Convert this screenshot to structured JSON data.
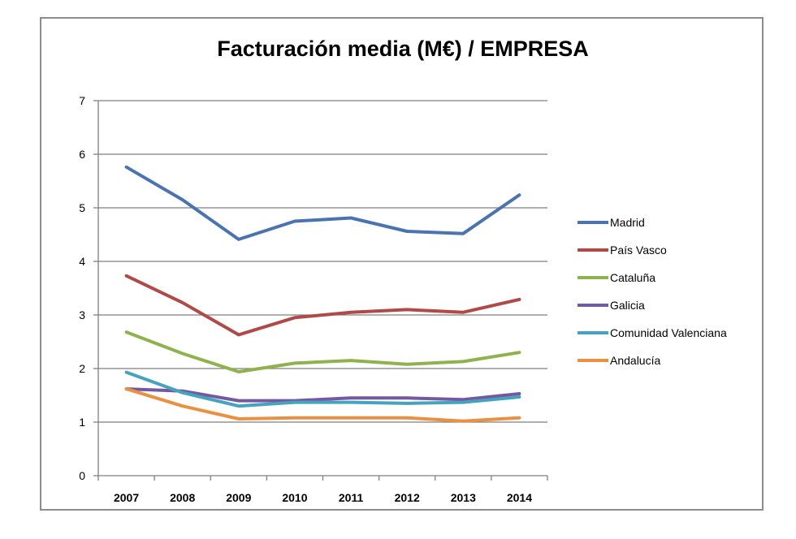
{
  "chart_data": {
    "type": "line",
    "title": "Facturación media (M€) / EMPRESA",
    "xlabel": "",
    "ylabel": "",
    "categories": [
      "2007",
      "2008",
      "2009",
      "2010",
      "2011",
      "2012",
      "2013",
      "2014"
    ],
    "ylim": [
      0,
      7
    ],
    "yticks": [
      "0",
      "1",
      "2",
      "3",
      "4",
      "5",
      "6",
      "7"
    ],
    "grid": true,
    "legend_position": "right",
    "series": [
      {
        "name": "Madrid",
        "color": "#4a73b0",
        "values": [
          5.76,
          5.15,
          4.41,
          4.75,
          4.81,
          4.56,
          4.52,
          5.24
        ]
      },
      {
        "name": "País Vasco",
        "color": "#b04a48",
        "values": [
          3.73,
          3.23,
          2.63,
          2.95,
          3.05,
          3.1,
          3.05,
          3.29
        ]
      },
      {
        "name": "Cataluña",
        "color": "#8fb24e",
        "values": [
          2.68,
          2.28,
          1.94,
          2.1,
          2.15,
          2.08,
          2.13,
          2.3
        ]
      },
      {
        "name": "Galicia",
        "color": "#7559a0",
        "values": [
          1.62,
          1.58,
          1.4,
          1.4,
          1.45,
          1.45,
          1.42,
          1.53
        ]
      },
      {
        "name": "Comunidad Valenciana",
        "color": "#45a3be",
        "values": [
          1.93,
          1.55,
          1.3,
          1.37,
          1.37,
          1.35,
          1.37,
          1.47
        ]
      },
      {
        "name": "Andalucía",
        "color": "#e99042",
        "values": [
          1.62,
          1.3,
          1.06,
          1.08,
          1.08,
          1.08,
          1.02,
          1.08
        ]
      }
    ]
  }
}
